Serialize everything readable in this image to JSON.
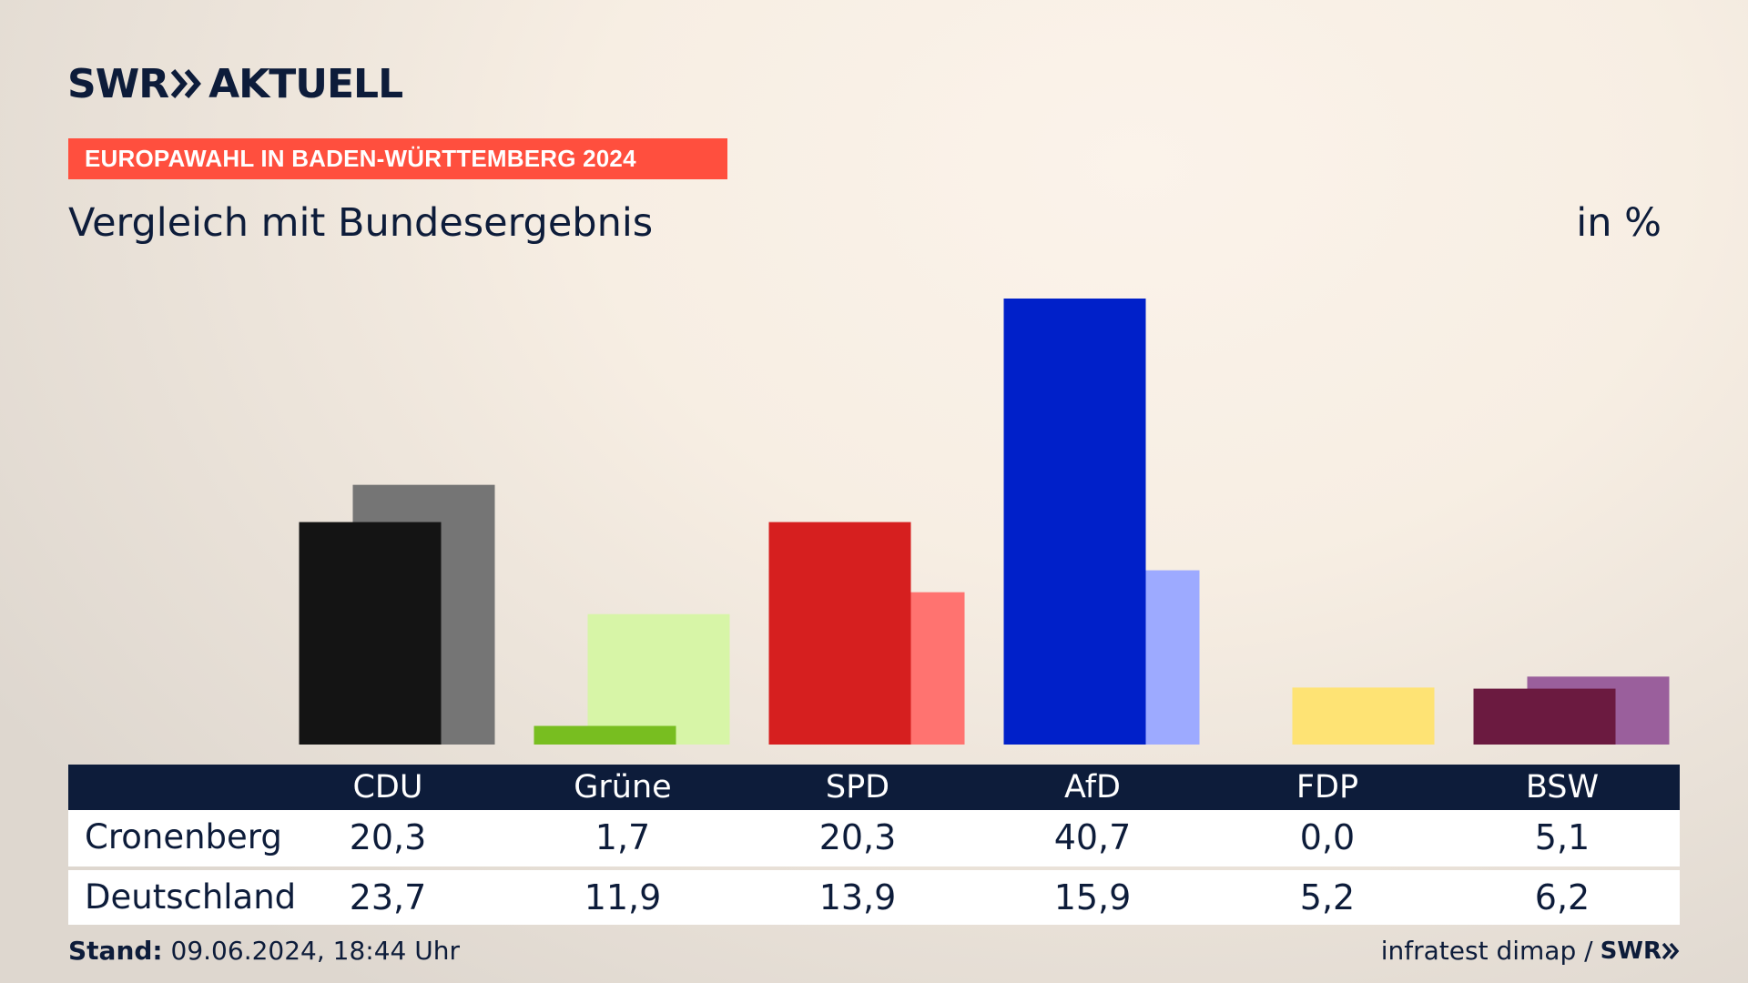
{
  "header": {
    "logo_brand": "SWR",
    "logo_suffix": "AKTUELL",
    "banner": "EUROPAWAHL IN BADEN-WÜRTTEMBERG 2024",
    "subtitle": "Vergleich mit Bundesergebnis",
    "unit": "in %"
  },
  "chart_data": {
    "type": "bar",
    "categories": [
      "CDU",
      "Grüne",
      "SPD",
      "AfD",
      "FDP",
      "BSW"
    ],
    "series": [
      {
        "name": "Cronenberg",
        "values": [
          20.3,
          1.7,
          20.3,
          40.7,
          0.0,
          5.1
        ],
        "colors": [
          "#141414",
          "#78be20",
          "#d61f1f",
          "#0020c9",
          "#fee06f",
          "#6b1a40"
        ]
      },
      {
        "name": "Deutschland",
        "values": [
          23.7,
          11.9,
          13.9,
          15.9,
          5.2,
          6.2
        ],
        "colors": [
          "#757575",
          "#d7f5a7",
          "#ff7370",
          "#9daaff",
          "#fee374",
          "#9a5f9c"
        ]
      }
    ],
    "ylim": [
      0,
      40.7
    ]
  },
  "table": {
    "columns": [
      "CDU",
      "Grüne",
      "SPD",
      "AfD",
      "FDP",
      "BSW"
    ],
    "rows": [
      {
        "label": "Cronenberg",
        "values": [
          "20,3",
          "1,7",
          "20,3",
          "40,7",
          "0,0",
          "5,1"
        ]
      },
      {
        "label": "Deutschland",
        "values": [
          "23,7",
          "11,9",
          "13,9",
          "15,9",
          "5,2",
          "6,2"
        ]
      }
    ]
  },
  "footer": {
    "stand_label": "Stand:",
    "stand_value": "09.06.2024, 18:44 Uhr",
    "source": "infratest dimap /",
    "source_brand": "SWR"
  }
}
